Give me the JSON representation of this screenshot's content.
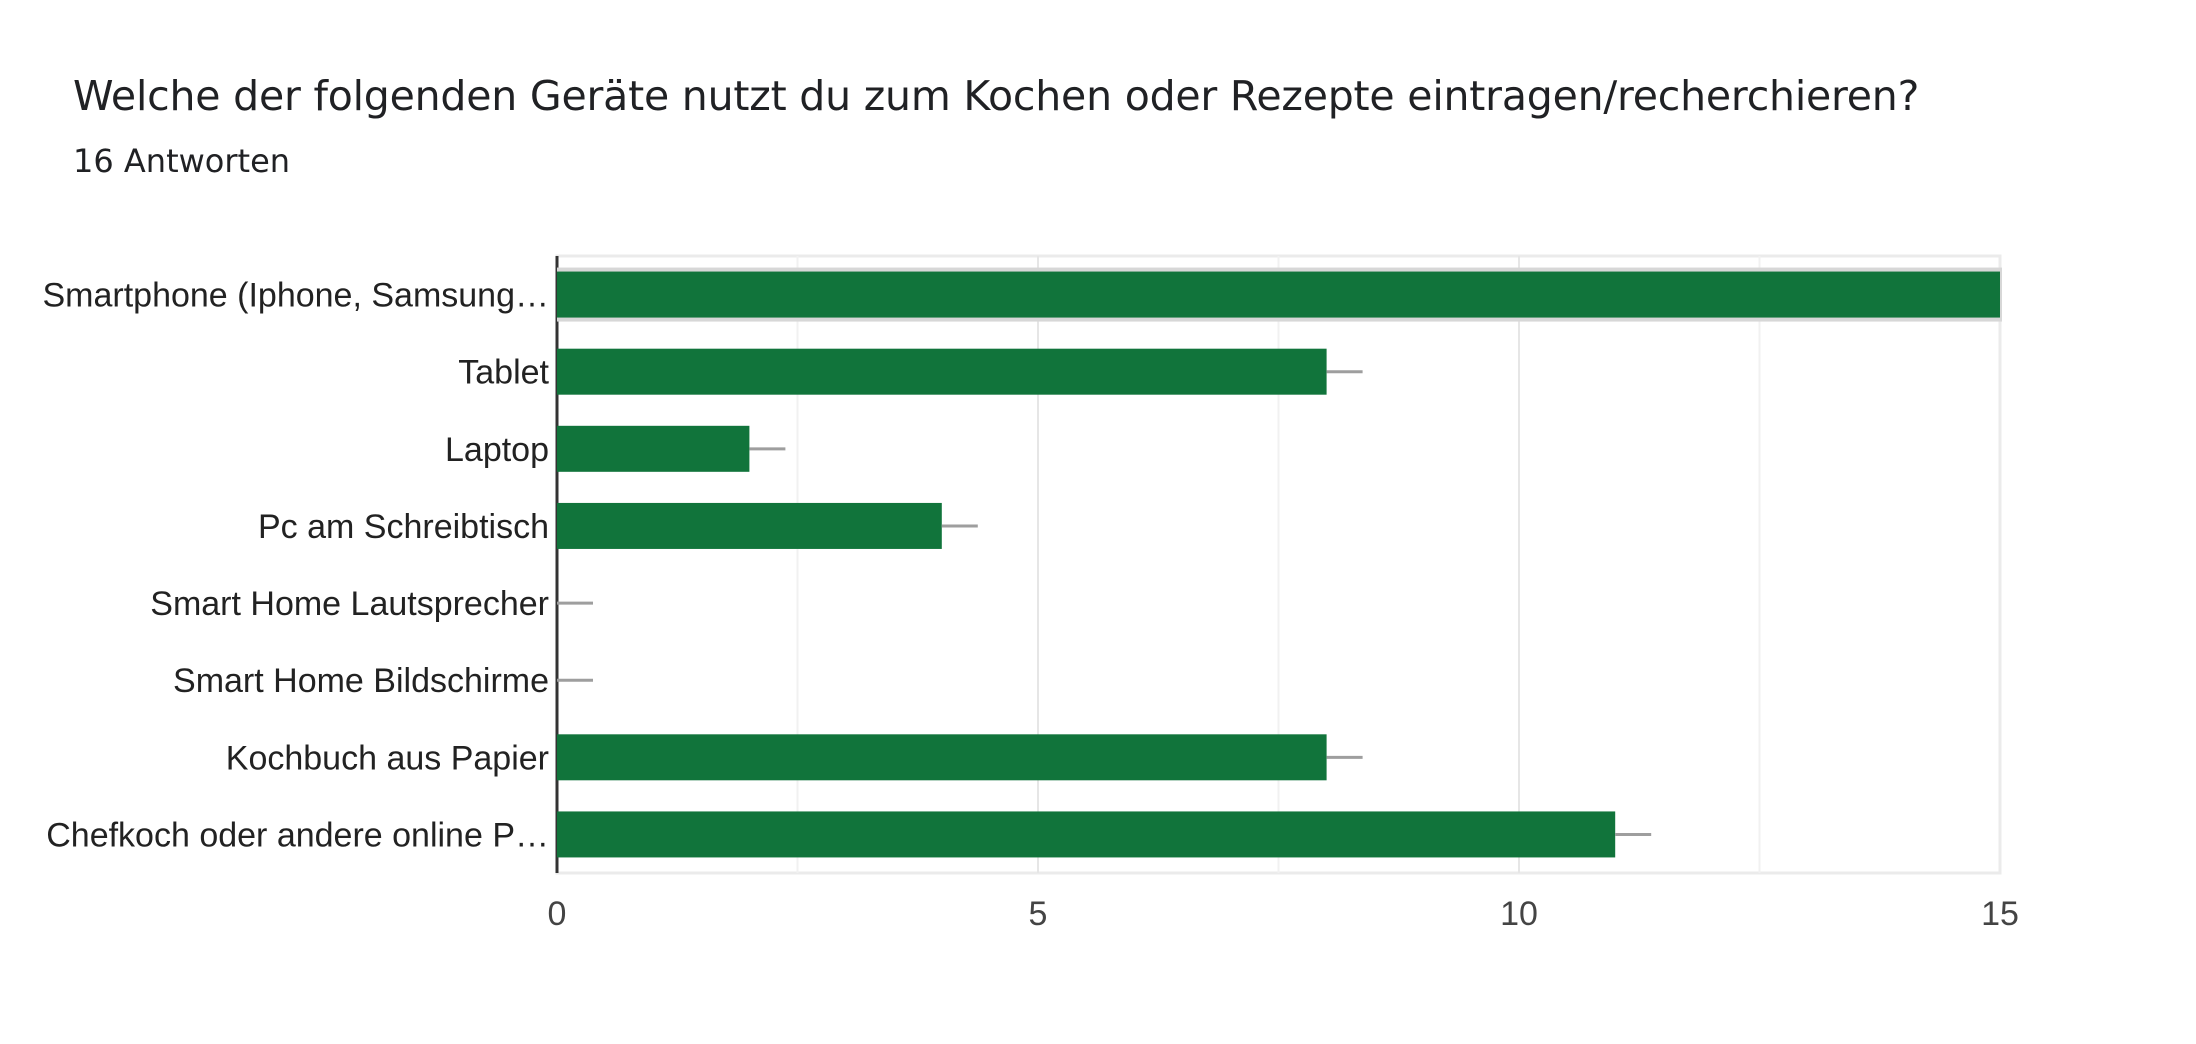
{
  "header": {
    "title": "Welche der folgenden Geräte nutzt du zum Kochen oder Rezepte eintragen/recherchieren?",
    "subtitle": "16 Antworten"
  },
  "chart_data": {
    "type": "bar",
    "orientation": "horizontal",
    "title": "Welche der folgenden Geräte nutzt du zum Kochen oder Rezepte eintragen/recherchieren?",
    "subtitle": "16 Antworten",
    "categories": [
      "Smartphone (Iphone, Samsung…",
      "Tablet",
      "Laptop",
      "Pc am Schreibtisch",
      "Smart Home Lautsprecher",
      "Smart Home Bildschirme",
      "Kochbuch aus Papier",
      "Chefkoch oder andere online P…"
    ],
    "values": [
      15,
      8,
      2,
      4,
      0,
      0,
      8,
      11
    ],
    "xlim": [
      0,
      15
    ],
    "xticks": [
      0,
      5,
      10,
      15
    ],
    "xlabel": "",
    "ylabel": "",
    "grid": true,
    "bar_color": "#11743b",
    "highlighted_category_index": 0
  }
}
